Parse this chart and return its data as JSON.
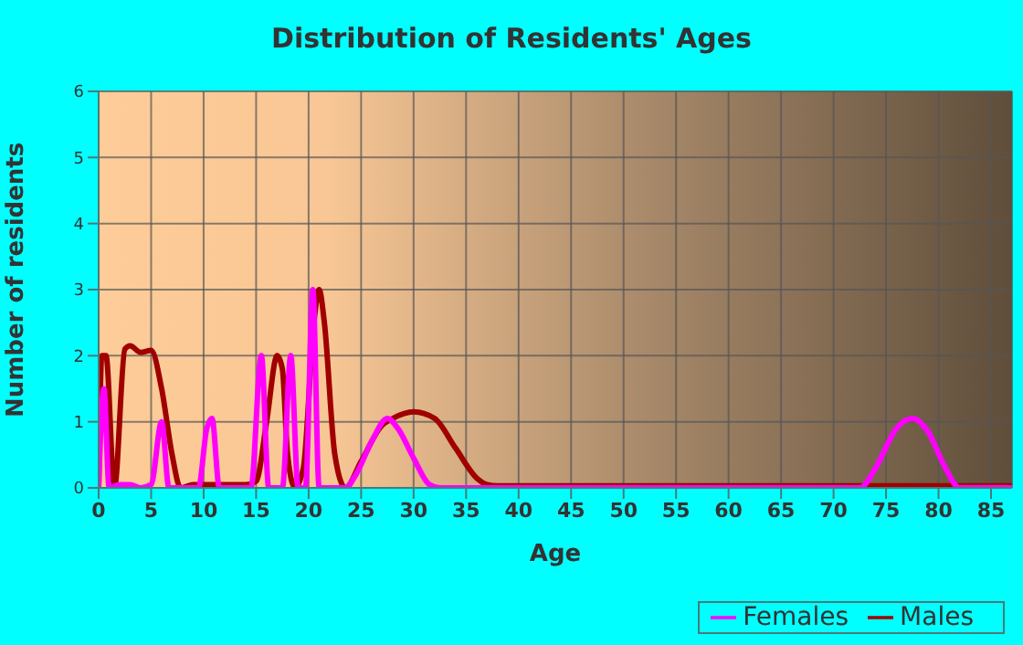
{
  "chart_data": {
    "type": "line",
    "title": "Distribution of Residents' Ages",
    "xlabel": "Age",
    "ylabel": "Number of residents",
    "xlim": [
      0,
      87
    ],
    "xticks": [
      0,
      5,
      10,
      15,
      20,
      25,
      30,
      35,
      40,
      45,
      50,
      55,
      60,
      65,
      70,
      75,
      80,
      85
    ],
    "ylim": [
      0,
      6
    ],
    "yticks": [
      0,
      1,
      2,
      3,
      4,
      5,
      6
    ],
    "grid": true,
    "legend": "bottom right",
    "marker": "none",
    "line_style": "solid",
    "series": [
      {
        "name": "Males",
        "color": "#a00000",
        "x": [
          0,
          0.3,
          0.7,
          1.5,
          2.5,
          3,
          4,
          5,
          6,
          7,
          7.8,
          9,
          14,
          15,
          16,
          17,
          17.5,
          18,
          18.7,
          19.5,
          20.5,
          21,
          21.5,
          22.5,
          23.5,
          25,
          27,
          28,
          30,
          32,
          34,
          36,
          37,
          38,
          40,
          87
        ],
        "values": [
          0,
          2,
          2,
          0,
          2.1,
          2.15,
          2.05,
          2.08,
          1.5,
          0.5,
          0,
          0.05,
          0.05,
          0.1,
          1,
          2,
          1.8,
          0.5,
          0,
          0.3,
          2.5,
          3,
          2.5,
          0.5,
          0,
          0.4,
          0.95,
          1.05,
          1.15,
          1.05,
          0.6,
          0.15,
          0.05,
          0.03,
          0.03,
          0.03
        ]
      },
      {
        "name": "Females",
        "color": "#ff00ff",
        "x": [
          0,
          0.5,
          1,
          2,
          3,
          4,
          5,
          6,
          6.7,
          9.5,
          10.3,
          10.8,
          11.5,
          14.5,
          15.5,
          16.2,
          17.5,
          18.3,
          19,
          19.7,
          20.4,
          21,
          23.5,
          24.5,
          26,
          27.5,
          28.5,
          30,
          31.5,
          32.5,
          72.5,
          74,
          76,
          77.5,
          79,
          80.5,
          82,
          87
        ],
        "values": [
          0,
          1.5,
          0,
          0.05,
          0.05,
          0,
          0.05,
          1,
          0,
          0,
          0.9,
          1.05,
          0,
          0,
          2,
          0,
          0,
          2,
          0,
          0,
          3,
          0,
          0,
          0.2,
          0.7,
          1.05,
          0.9,
          0.45,
          0.05,
          0,
          0,
          0.3,
          0.9,
          1.05,
          0.85,
          0.35,
          0,
          0
        ]
      }
    ]
  }
}
